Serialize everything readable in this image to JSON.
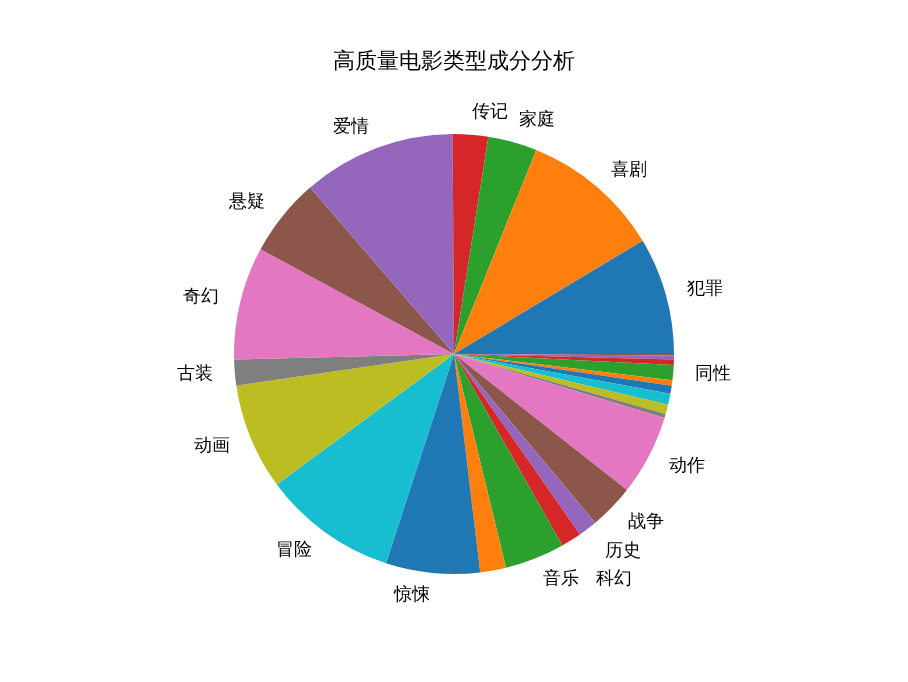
{
  "chart_data": {
    "type": "pie",
    "title": "高质量电影类型成分分析",
    "categories": [
      "犯罪",
      "喜剧",
      "家庭",
      "传记",
      "爱情",
      "悬疑",
      "奇幻",
      "古装",
      "动画",
      "冒险",
      "惊悚",
      null,
      "音乐",
      "科幻",
      "历史",
      "战争",
      "动作",
      null,
      null,
      null,
      null,
      null,
      "同性",
      null,
      null,
      null
    ],
    "values": [
      8.6,
      10.3,
      3.6,
      2.6,
      11.25,
      5.75,
      8.3,
      1.9,
      7.8,
      9.9,
      6.9,
      1.9,
      4.4,
      1.5,
      1.4,
      3.3,
      5.9,
      0.3,
      0.7,
      0.8,
      0.6,
      0.4,
      1.1,
      0.4,
      0.3,
      0.1
    ],
    "colors": [
      "#1f77b4",
      "#ff7f0e",
      "#2ca02c",
      "#d62728",
      "#9467bd",
      "#8c564b",
      "#e377c2",
      "#7f7f7f",
      "#bcbd22",
      "#17becf",
      "#1f77b4",
      "#ff7f0e",
      "#2ca02c",
      "#d62728",
      "#9467bd",
      "#8c564b",
      "#e377c2",
      "#7f7f7f",
      "#bcbd22",
      "#17becf",
      "#1f77b4",
      "#ff7f0e",
      "#2ca02c",
      "#d62728",
      "#9467bd",
      "#8c564b"
    ],
    "legend": false
  }
}
